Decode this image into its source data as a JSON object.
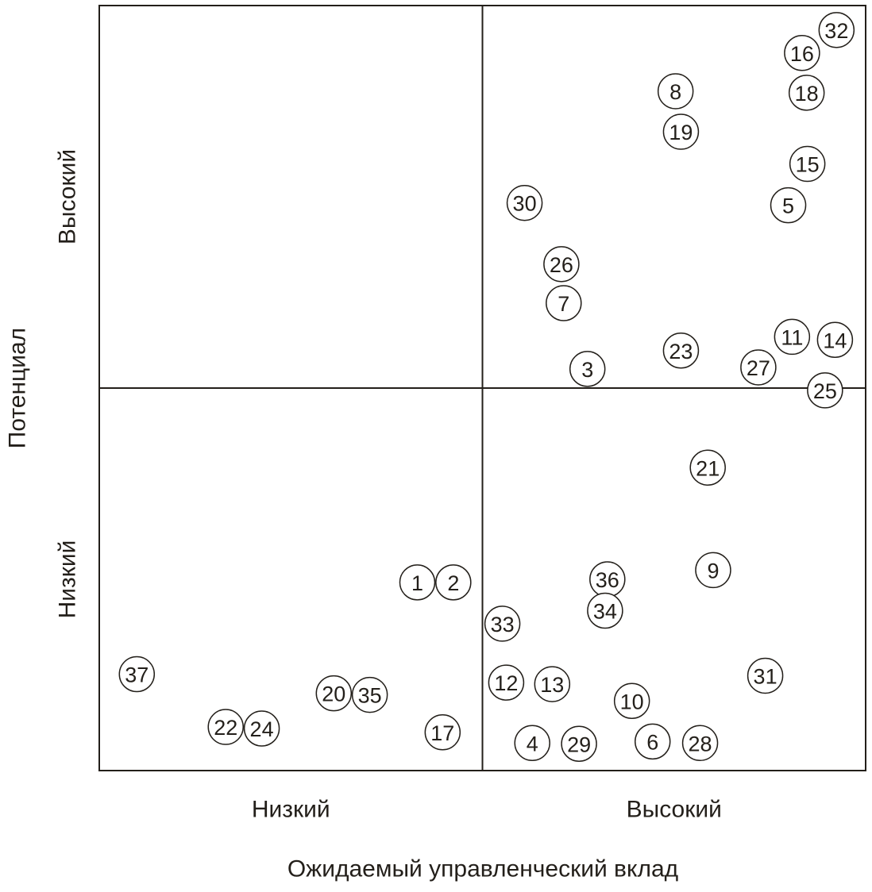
{
  "chart_data": {
    "type": "scatter",
    "xlabel": "Ожидаемый управленческий вклад",
    "ylabel": "Потенциал",
    "x_categories": [
      "Низкий",
      "Высокий"
    ],
    "y_categories": [
      "Низкий",
      "Высокий"
    ],
    "xlim": [
      0,
      10
    ],
    "ylim": [
      0,
      10
    ],
    "color": "#231f1a",
    "point_labels": [
      32,
      16,
      18,
      8,
      19,
      15,
      5,
      30,
      26,
      7,
      11,
      14,
      23,
      3,
      27,
      25,
      21,
      9,
      36,
      1,
      2,
      34,
      33,
      37,
      31,
      12,
      13,
      20,
      35,
      10,
      22,
      24,
      17,
      4,
      29,
      6,
      28
    ],
    "x": [
      9.62,
      9.17,
      9.23,
      7.52,
      7.59,
      9.24,
      8.99,
      5.55,
      6.03,
      6.06,
      9.04,
      9.6,
      7.59,
      6.37,
      8.6,
      9.47,
      7.94,
      8.01,
      6.63,
      4.15,
      4.62,
      6.6,
      5.26,
      0.49,
      8.69,
      5.31,
      5.91,
      3.06,
      3.53,
      6.95,
      1.65,
      2.12,
      4.48,
      5.65,
      6.26,
      7.22,
      7.84
    ],
    "y": [
      9.68,
      9.38,
      8.86,
      8.88,
      8.35,
      7.93,
      7.39,
      7.42,
      6.62,
      6.11,
      5.67,
      5.63,
      5.49,
      5.25,
      5.27,
      4.97,
      3.96,
      2.62,
      2.5,
      2.46,
      2.46,
      2.09,
      1.92,
      1.26,
      1.24,
      1.15,
      1.13,
      1.01,
      0.99,
      0.91,
      0.57,
      0.55,
      0.5,
      0.36,
      0.35,
      0.38,
      0.36
    ]
  }
}
